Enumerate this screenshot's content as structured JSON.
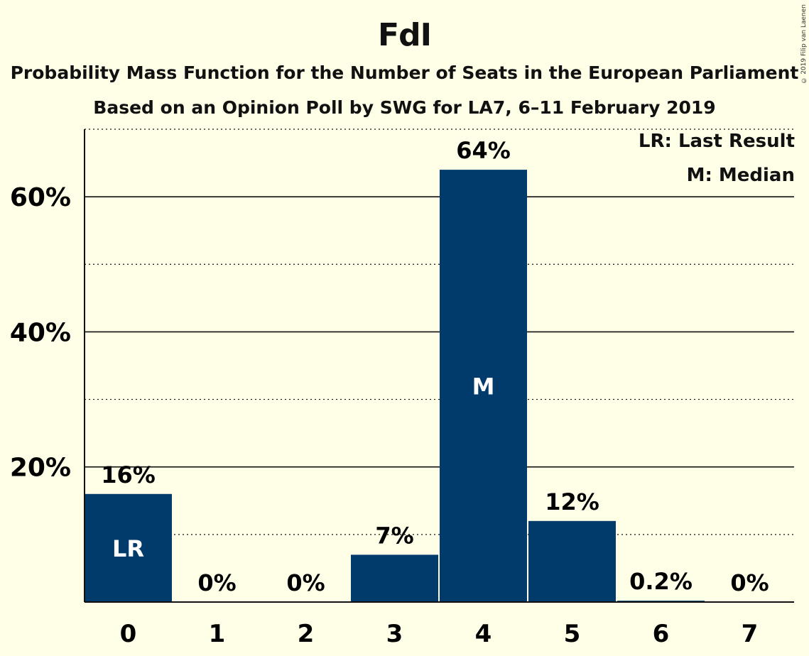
{
  "chart_data": {
    "type": "bar",
    "title": "FdI",
    "subtitle": "Probability Mass Function for the Number of Seats in the European Parliament",
    "subtitle2": "Based on an Opinion Poll by SWG for LA7, 6–11 February 2019",
    "copyright": "© 2019 Filip van Laenen",
    "categories": [
      "0",
      "1",
      "2",
      "3",
      "4",
      "5",
      "6",
      "7"
    ],
    "values": [
      16,
      0,
      0,
      7,
      64,
      12,
      0.2,
      0
    ],
    "data_labels": [
      "16%",
      "0%",
      "0%",
      "7%",
      "64%",
      "12%",
      "0.2%",
      "0%"
    ],
    "bar_annotations": [
      {
        "category": "0",
        "text": "LR"
      },
      {
        "category": "4",
        "text": "M"
      }
    ],
    "legend": [
      "LR: Last Result",
      "M: Median"
    ],
    "legend_placement": "top-right",
    "yticks": [
      20,
      40,
      60
    ],
    "ytick_labels": [
      "20%",
      "40%",
      "60%"
    ],
    "ylim": [
      0,
      70
    ],
    "grid": true,
    "colors": {
      "bar": "#003B6B",
      "background": "#FFFEE6"
    }
  }
}
